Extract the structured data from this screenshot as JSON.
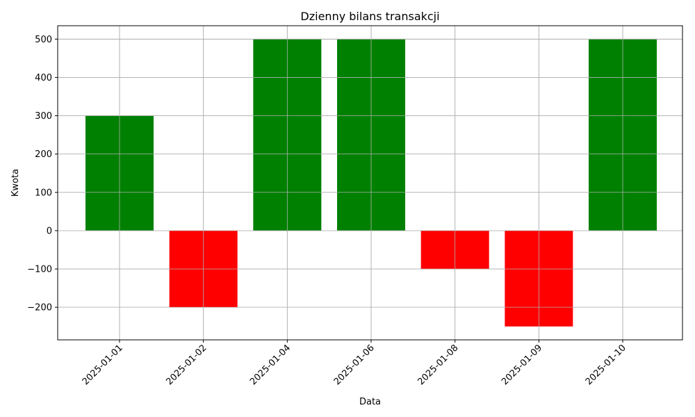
{
  "chart_data": {
    "type": "bar",
    "title": "Dzienny bilans transakcji",
    "xlabel": "Data",
    "ylabel": "Kwota",
    "categories": [
      "2025-01-01",
      "2025-01-02",
      "2025-01-04",
      "2025-01-06",
      "2025-01-08",
      "2025-01-09",
      "2025-01-10"
    ],
    "values": [
      300,
      -200,
      500,
      500,
      -100,
      -250,
      500
    ],
    "ylim": [
      -285,
      535
    ],
    "yticks": [
      -200,
      -100,
      0,
      100,
      200,
      300,
      400,
      500
    ],
    "ytick_labels": [
      "−200",
      "−100",
      "0",
      "100",
      "200",
      "300",
      "400",
      "500"
    ],
    "grid": true,
    "colors": {
      "positive": "#008000",
      "negative": "#ff0000"
    }
  }
}
